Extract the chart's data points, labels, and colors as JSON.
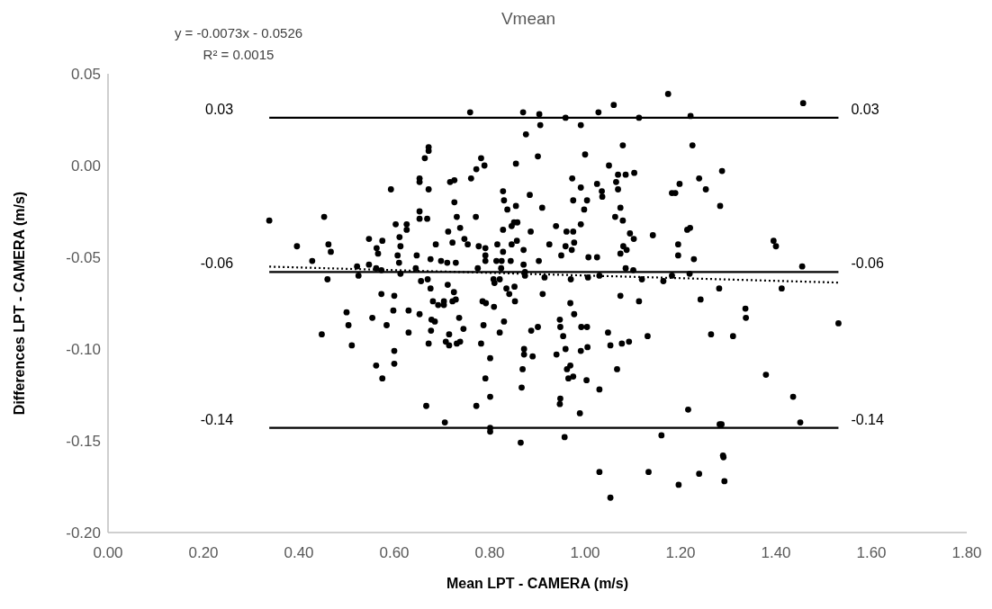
{
  "chart_data": {
    "type": "scatter",
    "title": "Vmean",
    "xlabel": "Mean LPT - CAMERA (m/s)",
    "ylabel": "Differences LPT - CAMERA (m/s)",
    "annotations": [
      "y = -0.0073x - 0.0526",
      "R² = 0.0015"
    ],
    "xlim": [
      0,
      1.8
    ],
    "ylim": [
      -0.2,
      0.05
    ],
    "xticks": [
      {
        "value": 0,
        "label": "0.00"
      },
      {
        "value": 0.2,
        "label": "0.20"
      },
      {
        "value": 0.4,
        "label": "0.40"
      },
      {
        "value": 0.6,
        "label": "0.60"
      },
      {
        "value": 0.8,
        "label": "0.80"
      },
      {
        "value": 1,
        "label": "1.00"
      },
      {
        "value": 1.2,
        "label": "1.20"
      },
      {
        "value": 1.4,
        "label": "1.40"
      },
      {
        "value": 1.6,
        "label": "1.60"
      },
      {
        "value": 1.8,
        "label": "1.80"
      }
    ],
    "yticks": [
      {
        "value": 0.05,
        "label": "0.05"
      },
      {
        "value": 0,
        "label": "0.00"
      },
      {
        "value": -0.05,
        "label": "-0.05"
      },
      {
        "value": -0.1,
        "label": "-0.10"
      },
      {
        "value": -0.15,
        "label": "-0.15"
      },
      {
        "value": -0.2,
        "label": "-0.20"
      }
    ],
    "grid": false,
    "ref_lines": [
      {
        "axis": "y",
        "value": 0.026,
        "label": "0.03",
        "color": "#000000"
      },
      {
        "axis": "y",
        "value": -0.058,
        "label": "-0.06",
        "color": "#000000"
      },
      {
        "axis": "y",
        "value": -0.143,
        "label": "-0.14",
        "color": "#000000"
      }
    ],
    "series": [
      {
        "color": "#000000",
        "marker": "circle",
        "x": [
          0.338,
          0.396,
          0.428,
          0.453,
          0.462,
          0.467,
          0.46,
          0.448,
          0.5,
          0.504,
          0.511,
          0.522,
          0.525,
          0.547,
          0.547,
          0.563,
          0.566,
          0.575,
          0.562,
          0.573,
          0.573,
          0.554,
          0.562,
          0.575,
          0.584,
          0.593,
          0.603,
          0.611,
          0.607,
          0.61,
          0.613,
          0.626,
          0.626,
          0.613,
          0.6,
          0.598,
          0.63,
          0.63,
          0.6,
          0.6,
          0.653,
          0.653,
          0.672,
          0.672,
          0.664,
          0.672,
          0.653,
          0.653,
          0.669,
          0.647,
          0.645,
          0.656,
          0.67,
          0.676,
          0.676,
          0.687,
          0.681,
          0.692,
          0.704,
          0.704,
          0.653,
          0.678,
          0.685,
          0.677,
          0.672,
          0.667,
          0.706,
          0.713,
          0.722,
          0.738,
          0.726,
          0.731,
          0.717,
          0.726,
          0.698,
          0.711,
          0.729,
          0.712,
          0.725,
          0.722,
          0.729,
          0.715,
          0.708,
          0.715,
          0.731,
          0.738,
          0.736,
          0.745,
          0.759,
          0.761,
          0.772,
          0.782,
          0.789,
          0.771,
          0.747,
          0.754,
          0.777,
          0.791,
          0.791,
          0.791,
          0.775,
          0.785,
          0.792,
          0.809,
          0.787,
          0.782,
          0.801,
          0.791,
          0.801,
          0.772,
          0.801,
          0.801,
          0.816,
          0.814,
          0.828,
          0.828,
          0.83,
          0.837,
          0.855,
          0.855,
          0.828,
          0.846,
          0.851,
          0.858,
          0.846,
          0.857,
          0.825,
          0.844,
          0.824,
          0.808,
          0.81,
          0.821,
          0.835,
          0.841,
          0.852,
          0.853,
          0.83,
          0.821,
          1.174,
          1.06,
          0.87,
          0.904,
          0.906,
          0.959,
          0.991,
          1.028,
          1.113,
          1.221,
          0.876,
          0.901,
          1.0,
          1.079,
          1.225,
          1.05,
          0.973,
          1.069,
          1.085,
          1.103,
          0.991,
          1.025,
          1.035,
          1.036,
          1.065,
          1.069,
          1.198,
          1.182,
          1.189,
          1.239,
          1.253,
          1.287,
          0.884,
          0.91,
          0.975,
          1.004,
          0.998,
          1.074,
          1.063,
          1.079,
          1.283,
          0.886,
          0.939,
          0.961,
          0.975,
          0.991,
          0.871,
          0.925,
          0.959,
          0.972,
          0.977,
          0.95,
          1.007,
          1.025,
          1.074,
          1.08,
          1.087,
          1.094,
          1.102,
          1.142,
          1.214,
          1.22,
          1.195,
          1.195,
          1.228,
          0.903,
          0.871,
          0.874,
          0.874,
          0.915,
          0.97,
          1.006,
          1.03,
          1.085,
          1.101,
          1.119,
          1.164,
          1.182,
          1.219,
          1.281,
          0.911,
          1.074,
          1.113,
          1.242,
          0.969,
          0.977,
          0.947,
          0.948,
          0.954,
          0.887,
          0.901,
          0.992,
          1.004,
          1.048,
          1.053,
          1.077,
          1.092,
          1.131,
          1.264,
          1.31,
          0.872,
          0.872,
          0.89,
          0.94,
          0.959,
          0.991,
          1.005,
          0.869,
          0.867,
          0.962,
          0.969,
          0.965,
          0.975,
          1.003,
          1.03,
          1.067,
          0.948,
          0.947,
          0.989,
          1.216,
          1.282,
          1.286,
          0.865,
          0.957,
          1.16,
          1.289,
          1.457,
          1.395,
          1.4,
          1.455,
          1.412,
          1.336,
          1.337,
          1.531,
          1.379,
          1.436,
          1.451,
          1.03,
          1.053,
          1.133,
          1.196,
          1.239,
          1.29,
          1.292
        ],
        "values": [
          -0.03,
          -0.044,
          -0.052,
          -0.028,
          -0.043,
          -0.047,
          -0.062,
          -0.092,
          -0.08,
          -0.087,
          -0.098,
          -0.055,
          -0.06,
          -0.04,
          -0.054,
          -0.045,
          -0.048,
          -0.041,
          -0.056,
          -0.057,
          -0.07,
          -0.083,
          -0.109,
          -0.116,
          -0.087,
          -0.013,
          -0.032,
          -0.039,
          -0.049,
          -0.053,
          -0.044,
          -0.032,
          -0.035,
          -0.059,
          -0.071,
          -0.079,
          -0.079,
          -0.091,
          -0.101,
          -0.108,
          -0.007,
          -0.009,
          0.01,
          0.008,
          0.004,
          -0.013,
          -0.025,
          -0.029,
          -0.029,
          -0.049,
          -0.056,
          -0.063,
          -0.062,
          -0.051,
          -0.067,
          -0.043,
          -0.074,
          -0.076,
          -0.074,
          -0.076,
          -0.081,
          -0.084,
          -0.085,
          -0.09,
          -0.097,
          -0.131,
          -0.14,
          -0.036,
          -0.042,
          -0.034,
          -0.02,
          -0.028,
          -0.009,
          -0.008,
          -0.052,
          -0.053,
          -0.053,
          -0.065,
          -0.069,
          -0.074,
          -0.073,
          -0.092,
          -0.096,
          -0.098,
          -0.097,
          -0.096,
          -0.083,
          -0.089,
          0.029,
          -0.007,
          -0.002,
          0.004,
          0.0,
          -0.028,
          -0.04,
          -0.043,
          -0.044,
          -0.045,
          -0.049,
          -0.052,
          -0.056,
          -0.074,
          -0.075,
          -0.077,
          -0.087,
          -0.097,
          -0.105,
          -0.116,
          -0.126,
          -0.131,
          -0.143,
          -0.145,
          -0.043,
          -0.052,
          -0.047,
          -0.014,
          -0.019,
          -0.024,
          0.001,
          -0.022,
          -0.035,
          -0.033,
          -0.031,
          -0.031,
          -0.043,
          -0.041,
          -0.052,
          -0.052,
          -0.056,
          -0.062,
          -0.064,
          -0.062,
          -0.067,
          -0.07,
          -0.066,
          -0.074,
          -0.085,
          -0.091,
          0.039,
          0.033,
          0.029,
          0.028,
          0.022,
          0.026,
          0.022,
          0.029,
          0.026,
          0.027,
          0.017,
          0.005,
          0.006,
          0.011,
          0.011,
          0.0,
          -0.007,
          -0.005,
          -0.005,
          -0.004,
          -0.012,
          -0.01,
          -0.014,
          -0.017,
          -0.009,
          -0.013,
          -0.01,
          -0.015,
          -0.015,
          -0.007,
          -0.013,
          -0.003,
          -0.016,
          -0.023,
          -0.019,
          -0.019,
          -0.024,
          -0.023,
          -0.028,
          -0.03,
          -0.022,
          -0.036,
          -0.033,
          -0.036,
          -0.036,
          -0.032,
          -0.046,
          -0.043,
          -0.044,
          -0.046,
          -0.042,
          -0.049,
          -0.05,
          -0.05,
          -0.048,
          -0.044,
          -0.046,
          -0.037,
          -0.04,
          -0.038,
          -0.035,
          -0.034,
          -0.043,
          -0.049,
          -0.051,
          -0.052,
          -0.054,
          -0.058,
          -0.06,
          -0.061,
          -0.062,
          -0.061,
          -0.06,
          -0.056,
          -0.057,
          -0.062,
          -0.063,
          -0.06,
          -0.059,
          -0.067,
          -0.07,
          -0.071,
          -0.074,
          -0.073,
          -0.075,
          -0.081,
          -0.084,
          -0.088,
          -0.093,
          -0.09,
          -0.088,
          -0.088,
          -0.088,
          -0.091,
          -0.098,
          -0.097,
          -0.096,
          -0.093,
          -0.092,
          -0.093,
          -0.1,
          -0.103,
          -0.104,
          -0.103,
          -0.1,
          -0.101,
          -0.099,
          -0.111,
          -0.121,
          -0.111,
          -0.109,
          -0.116,
          -0.115,
          -0.117,
          -0.122,
          -0.111,
          -0.127,
          -0.13,
          -0.135,
          -0.133,
          -0.141,
          -0.141,
          -0.151,
          -0.148,
          -0.147,
          -0.158,
          0.034,
          -0.041,
          -0.044,
          -0.055,
          -0.067,
          -0.078,
          -0.083,
          -0.086,
          -0.114,
          -0.126,
          -0.14,
          -0.167,
          -0.181,
          -0.167,
          -0.174,
          -0.168,
          -0.159,
          -0.172
        ]
      },
      {
        "type": "line",
        "color": "#000000",
        "marker": "none",
        "line_style": "dotted",
        "x": [
          0.338,
          1.531
        ],
        "values": [
          -0.0551,
          -0.0638
        ]
      }
    ]
  }
}
